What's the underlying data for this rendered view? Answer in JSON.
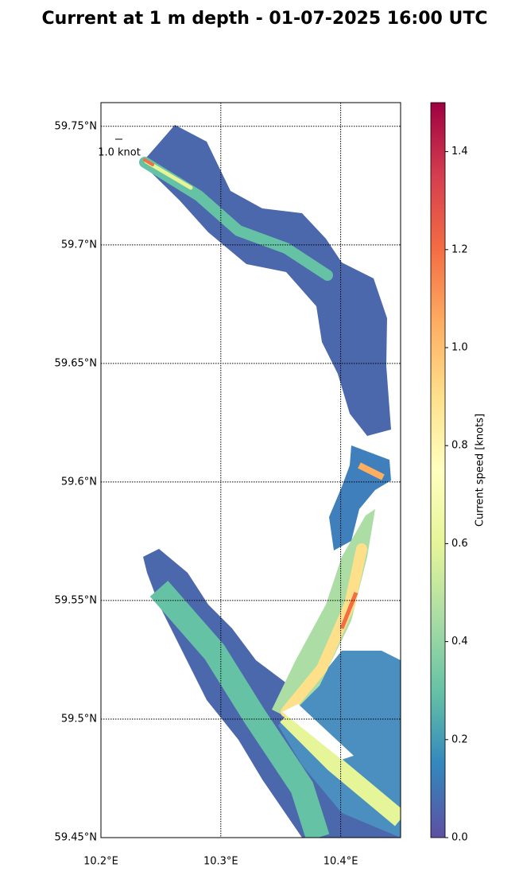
{
  "chart_data": {
    "type": "map",
    "title": "Current at 1 m depth - 01-07-2025 16:00 UTC",
    "xlim": [
      10.2,
      10.45
    ],
    "ylim": [
      59.45,
      59.76
    ],
    "xticks": [
      {
        "value": 10.2,
        "label": "10.2°E"
      },
      {
        "value": 10.3,
        "label": "10.3°E"
      },
      {
        "value": 10.4,
        "label": "10.4°E"
      }
    ],
    "yticks": [
      {
        "value": 59.45,
        "label": "59.45°N"
      },
      {
        "value": 59.5,
        "label": "59.5°N"
      },
      {
        "value": 59.55,
        "label": "59.55°N"
      },
      {
        "value": 59.6,
        "label": "59.6°N"
      },
      {
        "value": 59.65,
        "label": "59.65°N"
      },
      {
        "value": 59.7,
        "label": "59.7°N"
      },
      {
        "value": 59.75,
        "label": "59.75°N"
      }
    ],
    "grid": true,
    "quiver_key_label": "1.0 knot",
    "colorbar": {
      "label": "Current speed [knots]",
      "lim": [
        0,
        1.5
      ],
      "ticks": [
        {
          "value": 0,
          "label": "0.0"
        },
        0.2,
        0.4,
        0.6,
        0.8,
        {
          "value": 1,
          "label": "1.0"
        },
        1.2,
        1.4
      ],
      "colors": [
        "#5e4fa2",
        "#3288bd",
        "#66c2a5",
        "#abdda4",
        "#e6f598",
        "#ffffbf",
        "#fee08b",
        "#fdae61",
        "#f46d43",
        "#d53e4f",
        "#9e0142"
      ]
    }
  }
}
